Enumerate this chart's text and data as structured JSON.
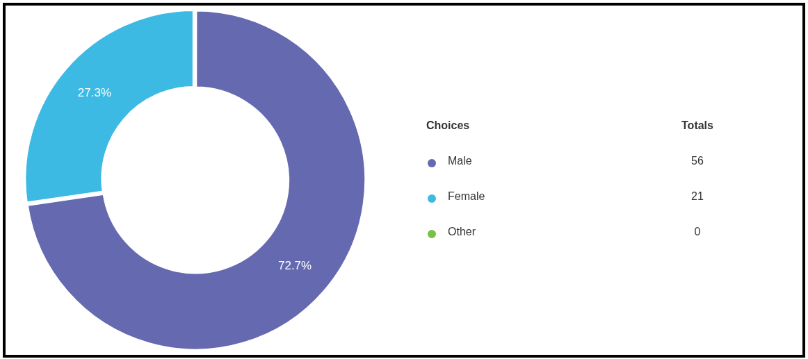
{
  "chart_data": {
    "type": "donut",
    "categories": [
      "Male",
      "Female",
      "Other"
    ],
    "values": [
      72.7,
      27.3,
      0
    ],
    "colors": [
      "#6569b0",
      "#3dbae4",
      "#7ac143"
    ],
    "value_labels": [
      "72.7%",
      "27.3%",
      null
    ],
    "legend": "right",
    "legend_title": "Choices",
    "annotations": [
      "Totals",
      "56",
      "21",
      "0"
    ]
  }
}
